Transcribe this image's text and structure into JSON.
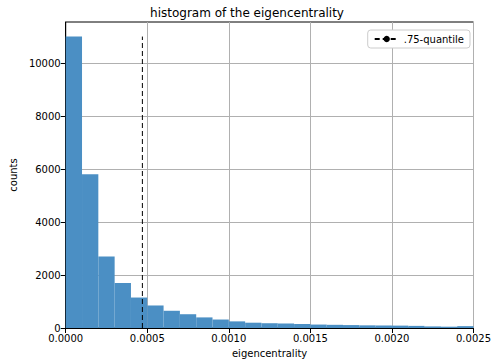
{
  "chart_data": {
    "type": "histogram",
    "title": "histogram of the eigencentrality",
    "x_label": "eigencentrality",
    "y_label": "counts",
    "bins": [
      0,
      0.0001,
      0.0002,
      0.0003,
      0.0004,
      0.0005,
      0.0006,
      0.0007,
      0.0008,
      0.0009,
      0.001,
      0.0011,
      0.0012,
      0.0013,
      0.0014,
      0.0015,
      0.0016,
      0.0017,
      0.0018,
      0.0019,
      0.002,
      0.0021,
      0.0022,
      0.0023,
      0.0024,
      0.0025
    ],
    "counts": [
      11000,
      5800,
      2700,
      1700,
      1150,
      850,
      650,
      520,
      400,
      320,
      250,
      200,
      180,
      170,
      150,
      130,
      120,
      110,
      100,
      95,
      90,
      80,
      60,
      50,
      70
    ],
    "color": "#4b8fc4",
    "quantile": {
      "name": ".75-quantile",
      "x": 0.00047,
      "y": [
        0,
        11000
      ],
      "line_style": "dashed",
      "color": "#000000"
    },
    "xlim": [
      0,
      0.0025
    ],
    "xticks": [
      {
        "value": 0,
        "label": "0.0000"
      },
      {
        "value": 0.0005,
        "label": "0.0005"
      },
      {
        "value": 0.001,
        "label": "0.0010"
      },
      {
        "value": 0.0015,
        "label": "0.0015"
      },
      {
        "value": 0.002,
        "label": "0.0020"
      },
      {
        "value": 0.0025,
        "label": "0.0025"
      }
    ],
    "ylim": [
      0,
      11550
    ],
    "yticks": [
      0,
      2000,
      4000,
      6000,
      8000,
      10000
    ],
    "grid": true,
    "legend": "upper right"
  }
}
